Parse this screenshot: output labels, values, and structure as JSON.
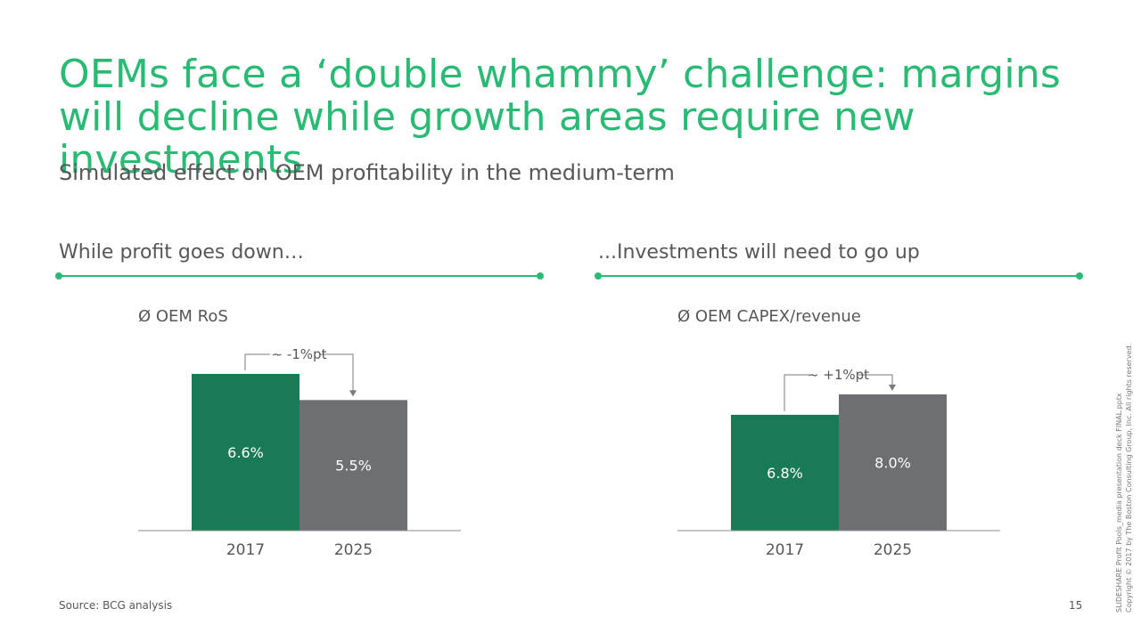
{
  "slide": {
    "title": "OEMs face a ‘double whammy’ challenge: margins will decline while growth areas require new investments",
    "subtitle": "Simulated effect on OEM profitability in the medium-term",
    "source": "Source: BCG analysis",
    "page_number": "15",
    "side_note": {
      "line1": "SLIDESHARE Profit Pools_media presentation deck FINAL.pptx",
      "line2": "Copyright © 2017 by The Boston Consulting Group, Inc. All rights reserved."
    }
  },
  "sections": [
    {
      "heading": "While profit goes down…"
    },
    {
      "heading": "...Investments will need to go up"
    }
  ],
  "colors": {
    "accent_green": "#29ba74",
    "bar_2017": "#197a56",
    "bar_2025": "#6e6f73",
    "text": "#575757"
  },
  "chart_data": [
    {
      "type": "bar",
      "title": "Ø OEM RoS",
      "categories": [
        "2017",
        "2025"
      ],
      "values": [
        6.6,
        5.5
      ],
      "value_labels": [
        "6.6%",
        "5.5%"
      ],
      "annotation": "~ -1%pt",
      "unit": "%",
      "ylim": [
        0,
        6.6
      ]
    },
    {
      "type": "bar",
      "title": "Ø OEM CAPEX/revenue",
      "categories": [
        "2017",
        "2025"
      ],
      "values": [
        6.8,
        8.0
      ],
      "value_labels": [
        "6.8%",
        "8.0%"
      ],
      "annotation": "~ +1%pt",
      "unit": "%",
      "ylim": [
        0,
        9.2
      ]
    }
  ]
}
